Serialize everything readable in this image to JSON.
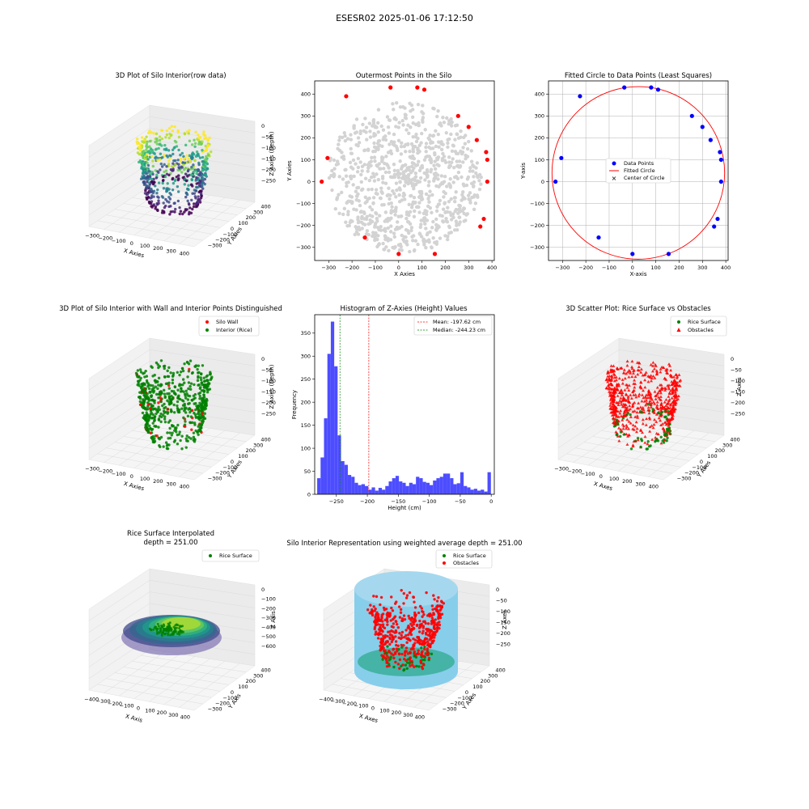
{
  "suptitle": "ESESR02 2025-01-06 17:12:50",
  "colors": {
    "gray_points": "#d3d3d3",
    "red": "#ff0000",
    "blue": "#0000ff",
    "green": "#008000",
    "hist_bar": "#4d4dff",
    "cylinder": "#87ceeb",
    "grid": "#b0b0b0"
  },
  "panels": {
    "p1": {
      "title": "3D Plot of Silo Interior(row data)",
      "xlabel": "X Axies",
      "ylabel": "Y Axies",
      "zlabel": "Z Axies (Depth)",
      "xticks": [
        "−300",
        "−200",
        "−100",
        "0",
        "100",
        "200",
        "300",
        "400"
      ],
      "yticks": [
        "400",
        "300",
        "200",
        "100",
        "0",
        "−100",
        "−200",
        "−300"
      ],
      "zticks": [
        "0",
        "−50",
        "−100",
        "−150",
        "−200",
        "−250"
      ]
    },
    "p4": {
      "title": "3D Plot of Silo Interior with Wall and Interior Points Distinguished",
      "xlabel": "X Axies",
      "ylabel": "Y Axies",
      "zlabel": "Z Axies (Depth)",
      "legend": [
        "Silo Wall",
        "Interior (Rice)"
      ],
      "xticks": [
        "−300",
        "−200",
        "−100",
        "0",
        "100",
        "200",
        "300",
        "400"
      ],
      "yticks": [
        "400",
        "300",
        "200",
        "100",
        "0",
        "−100",
        "−200",
        "−300"
      ],
      "zticks": [
        "0",
        "−50",
        "−100",
        "−150",
        "−200",
        "−250"
      ]
    },
    "p6": {
      "title": "3D Scatter Plot: Rice Surface vs Obstacles",
      "xlabel": "X Axes",
      "ylabel": "Y Axes",
      "zlabel": "Z Axes",
      "legend": [
        "Rice Surface",
        "Obstacles"
      ],
      "xticks": [
        "−300",
        "−200",
        "−100",
        "0",
        "100",
        "200",
        "300",
        "400"
      ],
      "yticks": [
        "400",
        "300",
        "200",
        "100",
        "0",
        "−100",
        "−200",
        "−300"
      ],
      "zticks": [
        "0",
        "−50",
        "−100",
        "−150",
        "−200",
        "−250"
      ]
    },
    "p7": {
      "title_line1": "Rice Surface Interpolated",
      "title_line2": "depth = 251.00",
      "xlabel": "X Axis",
      "ylabel": "Y Axis",
      "zlabel": "Z Axis",
      "legend": [
        "Rice Surface"
      ],
      "xticks": [
        "−400",
        "−300",
        "−200",
        "−100",
        "0",
        "100",
        "200",
        "300",
        "400"
      ],
      "yticks": [
        "400",
        "300",
        "200",
        "100",
        "0",
        "−100",
        "−200",
        "−300"
      ],
      "zticks": [
        "0",
        "−100",
        "−200",
        "−300",
        "−400",
        "−500",
        "−600"
      ]
    },
    "p8": {
      "title": "Silo Interior Representation using weighted average depth = 251.00",
      "xlabel": "X Axes",
      "ylabel": "Y Axes",
      "zlabel": "Z Axes",
      "legend": [
        "Rice Surface",
        "Obstacles"
      ],
      "xticks": [
        "−400",
        "−300",
        "−200",
        "−100",
        "0",
        "100",
        "200",
        "300",
        "400"
      ],
      "yticks": [
        "400",
        "300",
        "200",
        "100",
        "0",
        "−100",
        "−200",
        "−300"
      ],
      "zticks": [
        "0",
        "−50",
        "−100",
        "−150",
        "−200",
        "−250"
      ]
    }
  },
  "chart_data": [
    {
      "id": "outermost",
      "type": "scatter",
      "title": "Outermost Points in the Silo",
      "xlabel": "X Axies",
      "ylabel": "Y Axies",
      "xlim": [
        -360,
        410
      ],
      "ylim": [
        -360,
        460
      ],
      "xticks": [
        -300,
        -200,
        -100,
        0,
        100,
        200,
        300,
        400
      ],
      "yticks": [
        -300,
        -200,
        -100,
        0,
        100,
        200,
        300,
        400
      ],
      "grid": false,
      "series": [
        {
          "color": "#ff0000",
          "points": [
            [
              -330,
              0
            ],
            [
              -305,
              108
            ],
            [
              -225,
              390
            ],
            [
              -145,
              -255
            ],
            [
              -35,
              430
            ],
            [
              0,
              -330
            ],
            [
              80,
              430
            ],
            [
              110,
              420
            ],
            [
              155,
              -330
            ],
            [
              255,
              300
            ],
            [
              300,
              250
            ],
            [
              335,
              190
            ],
            [
              350,
              -205
            ],
            [
              365,
              -170
            ],
            [
              375,
              135
            ],
            [
              380,
              100
            ],
            [
              380,
              0
            ]
          ]
        }
      ]
    },
    {
      "id": "fitted_circle",
      "type": "scatter",
      "title": "Fitted Circle to Data Points (Least Squares)",
      "xlabel": "X-axis",
      "ylabel": "Y-axis",
      "xlim": [
        -360,
        410
      ],
      "ylim": [
        -360,
        460
      ],
      "xticks": [
        -300,
        -200,
        -100,
        0,
        100,
        200,
        300,
        400
      ],
      "yticks": [
        -300,
        -200,
        -100,
        0,
        100,
        200,
        300,
        400
      ],
      "grid": true,
      "legend_position": "center",
      "series": [
        {
          "name": "Data Points",
          "color": "#0000ff",
          "points": [
            [
              -330,
              0
            ],
            [
              -305,
              108
            ],
            [
              -225,
              390
            ],
            [
              -145,
              -255
            ],
            [
              -35,
              430
            ],
            [
              0,
              -330
            ],
            [
              80,
              430
            ],
            [
              110,
              420
            ],
            [
              155,
              -330
            ],
            [
              255,
              300
            ],
            [
              300,
              250
            ],
            [
              335,
              190
            ],
            [
              350,
              -205
            ],
            [
              365,
              -170
            ],
            [
              375,
              135
            ],
            [
              380,
              100
            ],
            [
              380,
              0
            ]
          ]
        },
        {
          "name": "Fitted Circle",
          "color": "#ff0000",
          "circle": {
            "cx": 25,
            "cy": 40,
            "r": 370
          }
        },
        {
          "name": "Center of Circle",
          "color": "#008000",
          "points": [
            [
              25,
              40
            ]
          ]
        }
      ]
    },
    {
      "id": "z_histogram",
      "type": "bar",
      "title": "Histogram of Z-Axies (Height) Values",
      "xlabel": "Height (cm)",
      "ylabel": "Frequency",
      "xlim": [
        -285,
        5
      ],
      "ylim": [
        0,
        390
      ],
      "xticks": [
        -250,
        -200,
        -150,
        -100,
        -50,
        0
      ],
      "yticks": [
        0,
        50,
        100,
        150,
        200,
        250,
        300,
        350
      ],
      "legend_position": "upper right",
      "bin_start": -281,
      "bin_width": 5.5,
      "values": [
        35,
        80,
        165,
        305,
        375,
        278,
        128,
        72,
        64,
        42,
        38,
        25,
        20,
        22,
        18,
        10,
        15,
        8,
        14,
        10,
        18,
        28,
        35,
        40,
        28,
        25,
        18,
        25,
        22,
        38,
        35,
        27,
        25,
        20,
        30,
        35,
        38,
        45,
        45,
        35,
        22,
        24,
        48,
        18,
        15,
        10,
        12,
        8,
        10,
        6,
        48
      ],
      "lines": [
        {
          "name": "Mean: -197.62 cm",
          "x": -197.62,
          "color": "#ff0000"
        },
        {
          "name": "Median: -244.23 cm",
          "x": -244.23,
          "color": "#008000"
        }
      ]
    }
  ]
}
